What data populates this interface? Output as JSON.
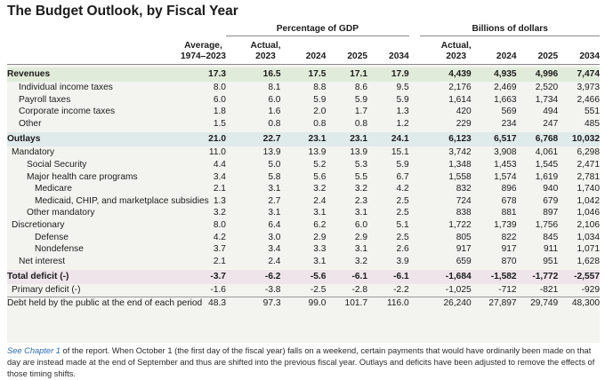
{
  "title": "The Budget Outlook, by Fiscal Year",
  "groups": {
    "gdp": "Percentage of GDP",
    "billions": "Billions of dollars"
  },
  "columns": {
    "average": [
      "Average,",
      "1974–2023"
    ],
    "gdp_actual": [
      "Actual,",
      "2023"
    ],
    "gdp_2024": "2024",
    "gdp_2025": "2025",
    "gdp_2034": "2034",
    "bil_actual": [
      "Actual,",
      "2023"
    ],
    "bil_2024": "2024",
    "bil_2025": "2025",
    "bil_2034": "2034"
  },
  "rows": [
    {
      "label": "Revenues",
      "values": [
        "17.3",
        "16.5",
        "17.5",
        "17.1",
        "17.9",
        "4,439",
        "4,935",
        "4,996",
        "7,474"
      ]
    },
    {
      "label": "Individual income taxes",
      "values": [
        "8.0",
        "8.1",
        "8.8",
        "8.6",
        "9.5",
        "2,176",
        "2,469",
        "2,520",
        "3,973"
      ]
    },
    {
      "label": "Payroll taxes",
      "values": [
        "6.0",
        "6.0",
        "5.9",
        "5.9",
        "5.9",
        "1,614",
        "1,663",
        "1,734",
        "2,466"
      ]
    },
    {
      "label": "Corporate income taxes",
      "values": [
        "1.8",
        "1.6",
        "2.0",
        "1.7",
        "1.3",
        "420",
        "569",
        "494",
        "551"
      ]
    },
    {
      "label": "Other",
      "values": [
        "1.5",
        "0.8",
        "0.8",
        "0.8",
        "1.2",
        "229",
        "234",
        "247",
        "485"
      ]
    },
    {
      "label": "Outlays",
      "values": [
        "21.0",
        "22.7",
        "23.1",
        "23.1",
        "24.1",
        "6,123",
        "6,517",
        "6,768",
        "10,032"
      ]
    },
    {
      "label": "Mandatory",
      "values": [
        "11.0",
        "13.9",
        "13.9",
        "13.9",
        "15.1",
        "3,742",
        "3,908",
        "4,061",
        "6,298"
      ]
    },
    {
      "label": "Social Security",
      "values": [
        "4.4",
        "5.0",
        "5.2",
        "5.3",
        "5.9",
        "1,348",
        "1,453",
        "1,545",
        "2,471"
      ]
    },
    {
      "label": "Major health care programs",
      "values": [
        "3.4",
        "5.8",
        "5.6",
        "5.5",
        "6.7",
        "1,558",
        "1,574",
        "1,619",
        "2,781"
      ]
    },
    {
      "label": "Medicare",
      "values": [
        "2.1",
        "3.1",
        "3.2",
        "3.2",
        "4.2",
        "832",
        "896",
        "940",
        "1,740"
      ]
    },
    {
      "label": "Medicaid, CHIP, and marketplace subsidies",
      "values": [
        "1.3",
        "2.7",
        "2.4",
        "2.3",
        "2.5",
        "724",
        "678",
        "679",
        "1,042"
      ]
    },
    {
      "label": "Other mandatory",
      "values": [
        "3.2",
        "3.1",
        "3.1",
        "3.1",
        "2.5",
        "838",
        "881",
        "897",
        "1,046"
      ]
    },
    {
      "label": "Discretionary",
      "values": [
        "8.0",
        "6.4",
        "6.2",
        "6.0",
        "5.1",
        "1,722",
        "1,739",
        "1,756",
        "2,106"
      ]
    },
    {
      "label": "Defense",
      "values": [
        "4.2",
        "3.0",
        "2.9",
        "2.9",
        "2.5",
        "805",
        "822",
        "845",
        "1,034"
      ]
    },
    {
      "label": "Nondefense",
      "values": [
        "3.7",
        "3.4",
        "3.3",
        "3.1",
        "2.6",
        "917",
        "917",
        "911",
        "1,071"
      ]
    },
    {
      "label": "Net interest",
      "values": [
        "2.1",
        "2.4",
        "3.1",
        "3.2",
        "3.9",
        "659",
        "870",
        "951",
        "1,628"
      ]
    },
    {
      "label": "Total deficit (-)",
      "values": [
        "-3.7",
        "-6.2",
        "-5.6",
        "-6.1",
        "-6.1",
        "-1,684",
        "-1,582",
        "-1,772",
        "-2,557"
      ]
    },
    {
      "label": "Primary deficit (-)",
      "values": [
        "-1.6",
        "-3.8",
        "-2.5",
        "-2.8",
        "-2.2",
        "-1,025",
        "-712",
        "-821",
        "-929"
      ]
    },
    {
      "label": "Debt held by the public at the end of each period",
      "values": [
        "48.3",
        "97.3",
        "99.0",
        "101.7",
        "116.0",
        "26,240",
        "27,897",
        "29,749",
        "48,300"
      ]
    }
  ],
  "note": {
    "link": "See Chapter 1",
    "text": " of the report. When October 1 (the first day of the fiscal year) falls on a weekend, certain payments that would have ordinarily been made on that day are instead made at the end of September and thus are shifted into the previous fiscal year. Outlays and deficits have been adjusted to remove the effects of those timing shifts."
  }
}
